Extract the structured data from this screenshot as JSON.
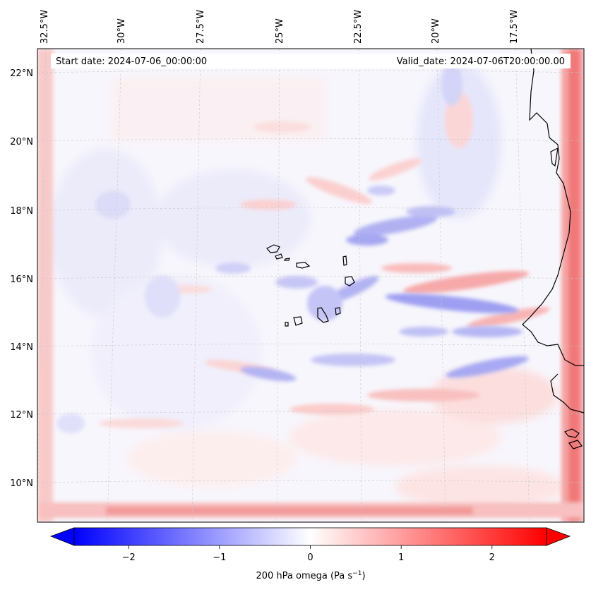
{
  "header": {
    "start_date": "Start date: 2024-07-06_00:00:00",
    "valid_date": "Valid_date: 2024-07-06T20:00:00.00"
  },
  "axes": {
    "lon_labels": [
      "32.5°W",
      "30°W",
      "27.5°W",
      "25°W",
      "22.5°W",
      "20°W",
      "17.5°W"
    ],
    "lat_labels": [
      "22°N",
      "20°N",
      "18°N",
      "16°N",
      "14°N",
      "12°N",
      "10°N"
    ]
  },
  "colorbar": {
    "ticks": [
      "−2",
      "−1",
      "0",
      "1",
      "2"
    ],
    "tick_values": [
      -2,
      -1,
      0,
      1,
      2
    ],
    "range": [
      -2.6,
      2.6
    ],
    "label_prefix": "200 hPa omega (Pa s",
    "label_exp": "−1",
    "label_suffix": ")",
    "low_color": "#0000ff",
    "mid_color": "#ffffff",
    "high_color": "#ff0000"
  },
  "map": {
    "field": "200 hPa omega",
    "coastline_color": "#000000"
  }
}
